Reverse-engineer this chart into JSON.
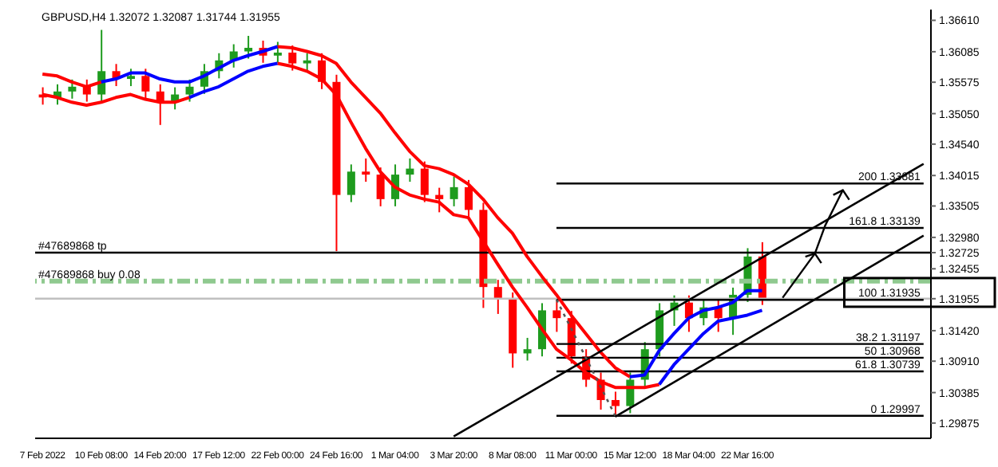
{
  "chart_data": {
    "type": "candlestick",
    "title": "GBPUSD,H4  1.32072 1.32087 1.31744 1.31955",
    "categories": [
      "7 Feb 2022",
      null,
      null,
      null,
      "10 Feb 08:00",
      null,
      null,
      null,
      "14 Feb 20:00",
      null,
      null,
      null,
      "17 Feb 12:00",
      null,
      null,
      null,
      "22 Feb 00:00",
      null,
      null,
      null,
      "24 Feb 16:00",
      null,
      null,
      null,
      "1 Mar 04:00",
      null,
      null,
      null,
      "3 Mar 20:00",
      null,
      null,
      null,
      "8 Mar 08:00",
      null,
      null,
      null,
      "11 Mar 00:00",
      null,
      null,
      null,
      "15 Mar 12:00",
      null,
      null,
      null,
      "18 Mar 04:00",
      null,
      null,
      null,
      "22 Mar 16:00",
      null,
      null,
      null,
      null,
      null,
      null,
      null,
      null,
      null,
      null,
      null,
      null
    ],
    "ohlc": [
      [
        1.3537,
        1.3549,
        1.352,
        1.3532
      ],
      [
        1.3532,
        1.3554,
        1.352,
        1.3542
      ],
      [
        1.3542,
        1.3562,
        1.353,
        1.355
      ],
      [
        1.355,
        1.3562,
        1.3525,
        1.3537
      ],
      [
        1.3537,
        1.3645,
        1.3525,
        1.3576
      ],
      [
        1.3576,
        1.3588,
        1.3551,
        1.3563
      ],
      [
        1.3563,
        1.358,
        1.3551,
        1.3568
      ],
      [
        1.3568,
        1.358,
        1.353,
        1.3542
      ],
      [
        1.3542,
        1.3554,
        1.3486,
        1.3524
      ],
      [
        1.3524,
        1.3549,
        1.3512,
        1.3537
      ],
      [
        1.3537,
        1.3562,
        1.3525,
        1.355
      ],
      [
        1.355,
        1.3588,
        1.3538,
        1.3576
      ],
      [
        1.3576,
        1.3606,
        1.3564,
        1.3594
      ],
      [
        1.3594,
        1.3621,
        1.3582,
        1.3609
      ],
      [
        1.3609,
        1.3635,
        1.3597,
        1.3615
      ],
      [
        1.3615,
        1.3627,
        1.359,
        1.3602
      ],
      [
        1.3602,
        1.3625,
        1.359,
        1.3607
      ],
      [
        1.3607,
        1.3619,
        1.3577,
        1.3589
      ],
      [
        1.3589,
        1.3606,
        1.3577,
        1.3594
      ],
      [
        1.3594,
        1.3606,
        1.3546,
        1.3558
      ],
      [
        1.3558,
        1.357,
        1.3275,
        1.3369
      ],
      [
        1.3369,
        1.342,
        1.3357,
        1.3408
      ],
      [
        1.3408,
        1.343,
        1.3391,
        1.3403
      ],
      [
        1.3403,
        1.3415,
        1.335,
        1.3362
      ],
      [
        1.3362,
        1.342,
        1.335,
        1.3403
      ],
      [
        1.3403,
        1.343,
        1.3391,
        1.3413
      ],
      [
        1.3413,
        1.3425,
        1.3357,
        1.3369
      ],
      [
        1.3369,
        1.3381,
        1.334,
        1.3362
      ],
      [
        1.3362,
        1.34,
        1.335,
        1.3382
      ],
      [
        1.3382,
        1.3394,
        1.3332,
        1.3344
      ],
      [
        1.3344,
        1.3356,
        1.318,
        1.3215
      ],
      [
        1.3215,
        1.3227,
        1.317,
        1.3194
      ],
      [
        1.3194,
        1.3206,
        1.308,
        1.3104
      ],
      [
        1.3104,
        1.313,
        1.3092,
        1.3111
      ],
      [
        1.3111,
        1.3188,
        1.3099,
        1.3176
      ],
      [
        1.3176,
        1.31935,
        1.314,
        1.3163
      ],
      [
        1.3163,
        1.3175,
        1.3087,
        1.3099
      ],
      [
        1.3099,
        1.3111,
        1.3048,
        1.306
      ],
      [
        1.306,
        1.3072,
        1.301,
        1.3026
      ],
      [
        1.3026,
        1.304,
        1.29997,
        1.3016
      ],
      [
        1.3016,
        1.3072,
        1.3004,
        1.306
      ],
      [
        1.306,
        1.3123,
        1.3048,
        1.3111
      ],
      [
        1.3111,
        1.3188,
        1.3099,
        1.3176
      ],
      [
        1.3176,
        1.3201,
        1.315,
        1.3189
      ],
      [
        1.3189,
        1.3201,
        1.314,
        1.3163
      ],
      [
        1.3163,
        1.3193,
        1.3151,
        1.3181
      ],
      [
        1.3181,
        1.3193,
        1.314,
        1.3163
      ],
      [
        1.3163,
        1.3214,
        1.3135,
        1.3202
      ],
      [
        1.3202,
        1.328,
        1.319,
        1.3266
      ],
      [
        1.3266,
        1.329,
        1.3185,
        1.31955
      ],
      null,
      null,
      null,
      null,
      null,
      null,
      null,
      null,
      null,
      null,
      null
    ],
    "colors": [
      "#ff0000",
      "#1e9b1e",
      "#1e9b1e",
      "#ff0000",
      "#1e9b1e",
      "#ff0000",
      "#1e9b1e",
      "#ff0000",
      "#ff0000",
      "#1e9b1e",
      "#1e9b1e",
      "#1e9b1e",
      "#1e9b1e",
      "#1e9b1e",
      "#1e9b1e",
      "#ff0000",
      "#1e9b1e",
      "#ff0000",
      "#1e9b1e",
      "#ff0000",
      "#ff0000",
      "#1e9b1e",
      "#ff0000",
      "#ff0000",
      "#1e9b1e",
      "#1e9b1e",
      "#ff0000",
      "#ff0000",
      "#1e9b1e",
      "#ff0000",
      "#ff0000",
      "#ff0000",
      "#ff0000",
      "#1e9b1e",
      "#1e9b1e",
      "#ff0000",
      "#ff0000",
      "#ff0000",
      "#ff0000",
      "#ff0000",
      "#1e9b1e",
      "#1e9b1e",
      "#1e9b1e",
      "#1e9b1e",
      "#ff0000",
      "#1e9b1e",
      "#ff0000",
      "#1e9b1e",
      "#1e9b1e",
      "#ff0000",
      null,
      null,
      null,
      null,
      null,
      null,
      null,
      null,
      null,
      null,
      null
    ],
    "series": [
      {
        "type": "line",
        "color": "#ff0000",
        "values": [
          1.3571,
          1.3568,
          1.3558,
          1.355,
          1.3558,
          null,
          null,
          null,
          null,
          null,
          null,
          null,
          null,
          null,
          null,
          null,
          1.3617,
          1.3615,
          1.3609,
          1.3602,
          1.3589,
          1.3558,
          1.3532,
          1.3506,
          1.3473,
          1.3442,
          1.3418,
          1.3413,
          1.3403,
          1.3387,
          1.3362,
          1.3331,
          1.3305,
          1.3266,
          1.3233,
          1.3202,
          1.3168,
          1.3137,
          1.3106,
          1.308,
          1.3065,
          null,
          null,
          null,
          null,
          null,
          null,
          null,
          null,
          null,
          null,
          null,
          null,
          null,
          null,
          null,
          null,
          null,
          null,
          null,
          null
        ]
      },
      {
        "type": "line",
        "color": "#0000ff",
        "values": [
          null,
          null,
          null,
          null,
          1.3558,
          1.3563,
          1.3573,
          1.3573,
          1.3563,
          1.3558,
          1.3558,
          1.3568,
          1.3581,
          1.3594,
          1.3602,
          1.3609,
          1.3617,
          null,
          null,
          null,
          null,
          null,
          null,
          null,
          null,
          null,
          null,
          null,
          null,
          null,
          null,
          null,
          null,
          null,
          null,
          null,
          null,
          null,
          null,
          null,
          1.3065,
          1.3068,
          1.3109,
          1.3137,
          1.3163,
          1.3176,
          1.3181,
          1.3189,
          1.3209,
          1.3209,
          null,
          null,
          null,
          null,
          null,
          null,
          null,
          null,
          null,
          null,
          null
        ]
      },
      {
        "type": "line",
        "color": "#ff0000",
        "values": [
          1.3537,
          1.3532,
          1.3524,
          1.3519,
          1.3524,
          1.3532,
          1.3537,
          1.3529,
          1.3524,
          1.3524,
          1.3532,
          null,
          null,
          null,
          null,
          null,
          1.3589,
          1.3584,
          1.3576,
          1.3563,
          1.3537,
          1.3491,
          1.3447,
          1.3408,
          1.3382,
          1.3369,
          1.3362,
          1.3357,
          1.3336,
          1.3331,
          1.3292,
          1.3253,
          1.3215,
          1.3181,
          1.3145,
          1.3111,
          1.3093,
          1.3072,
          1.3057,
          1.3047,
          1.3047,
          1.3047,
          1.3052,
          null,
          null,
          null,
          null,
          null,
          null,
          null,
          null,
          null,
          null,
          null,
          null,
          null,
          null,
          null,
          null,
          null,
          null
        ]
      },
      {
        "type": "line",
        "color": "#0000ff",
        "values": [
          null,
          null,
          null,
          null,
          null,
          null,
          null,
          null,
          null,
          null,
          1.3532,
          1.3542,
          1.355,
          1.3563,
          1.3576,
          1.3584,
          1.3589,
          null,
          null,
          null,
          null,
          null,
          null,
          null,
          null,
          null,
          null,
          null,
          null,
          null,
          null,
          null,
          null,
          null,
          null,
          null,
          null,
          null,
          null,
          null,
          null,
          null,
          1.3052,
          1.3085,
          1.3111,
          1.3137,
          1.3158,
          1.3163,
          1.3168,
          1.3176,
          null,
          null,
          null,
          null,
          null,
          null,
          null,
          null,
          null,
          null,
          null
        ]
      },
      {
        "type": "line",
        "color": "#000000",
        "line_style": "solid",
        "values": [
          null,
          null,
          null,
          null,
          null,
          null,
          null,
          null,
          null,
          null,
          null,
          null,
          null,
          null,
          null,
          null,
          null,
          null,
          null,
          null,
          null,
          null,
          null,
          null,
          null,
          null,
          null,
          null,
          1.2965,
          null,
          null,
          null,
          null,
          null,
          null,
          null,
          null,
          null,
          null,
          null,
          null,
          null,
          null,
          null,
          null,
          null,
          null,
          null,
          null,
          null,
          null,
          null,
          null,
          null,
          null,
          null,
          null,
          null,
          null,
          null,
          1.3421
        ]
      },
      {
        "type": "line",
        "color": "#000000",
        "line_style": "solid",
        "values": [
          null,
          null,
          null,
          null,
          null,
          null,
          null,
          null,
          null,
          null,
          null,
          null,
          null,
          null,
          null,
          null,
          null,
          null,
          null,
          null,
          null,
          null,
          null,
          null,
          null,
          null,
          null,
          null,
          null,
          null,
          null,
          null,
          null,
          null,
          null,
          null,
          null,
          null,
          null,
          1.2998,
          null,
          null,
          null,
          null,
          null,
          null,
          null,
          null,
          null,
          null,
          null,
          null,
          null,
          null,
          null,
          null,
          null,
          null,
          null,
          null,
          1.3301
        ]
      },
      {
        "type": "line",
        "color": "#555555",
        "line_style": "dotted",
        "values": [
          null,
          null,
          null,
          null,
          null,
          null,
          null,
          null,
          null,
          null,
          null,
          null,
          null,
          null,
          null,
          null,
          null,
          null,
          null,
          null,
          null,
          null,
          null,
          null,
          null,
          null,
          null,
          null,
          null,
          null,
          null,
          null,
          null,
          null,
          null,
          1.3194,
          null,
          null,
          null,
          1.3,
          null,
          null,
          null,
          null,
          null,
          null,
          null,
          null,
          null,
          null,
          null,
          null,
          null,
          null,
          null,
          null,
          null,
          null,
          null,
          null,
          null
        ]
      }
    ],
    "ref_lines": [
      {
        "axis": "y",
        "value": 1.32725,
        "label": "#47689868 tp",
        "color": "#000000"
      },
      {
        "axis": "y",
        "value": 1.3225,
        "label": "#47689868 buy 0.08",
        "color": "#8fc98f",
        "line_style": "dashed"
      },
      {
        "axis": "y",
        "value": 1.31955,
        "color": "#c0c0c0"
      },
      {
        "axis": "y",
        "value": 1.33881,
        "label": "200  1.33881"
      },
      {
        "axis": "y",
        "value": 1.33139,
        "label": "161.8  1.33139"
      },
      {
        "axis": "y",
        "value": 1.31935,
        "label": "100  1.31935"
      },
      {
        "axis": "y",
        "value": 1.31197,
        "label": "38.2  1.31197"
      },
      {
        "axis": "y",
        "value": 1.30968,
        "label": "50  1.30968"
      },
      {
        "axis": "y",
        "value": 1.30739,
        "label": "61.8  1.30739"
      },
      {
        "axis": "y",
        "value": 1.29997,
        "label": "0  1.29997"
      }
    ],
    "ylim": [
      1.2962,
      1.3679
    ],
    "yticks": [
      {
        "value": 1.3661,
        "label": "1.36610"
      },
      1.36085,
      1.35575,
      {
        "value": 1.3505,
        "label": "1.35050"
      },
      {
        "value": 1.3454,
        "label": "1.34540"
      },
      1.34015,
      1.33505,
      {
        "value": 1.3298,
        "label": "1.32980"
      },
      1.32725,
      1.32455,
      1.31955,
      {
        "value": 1.3142,
        "label": "1.31420"
      },
      {
        "value": 1.3091,
        "label": "1.30910"
      },
      1.30385,
      1.29875
    ],
    "grid": false,
    "legend": false
  }
}
